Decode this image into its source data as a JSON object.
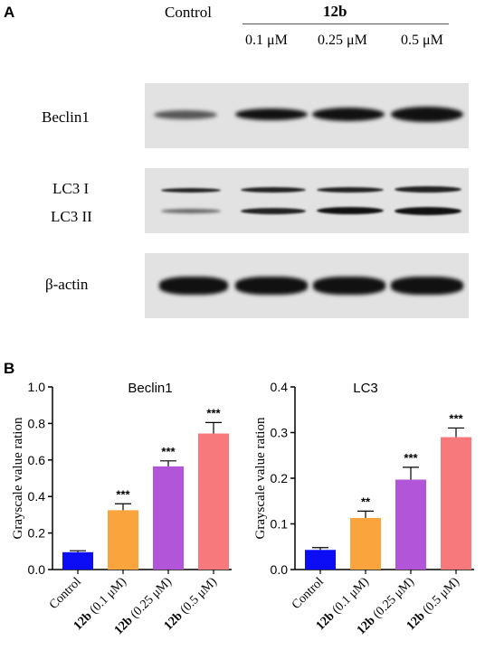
{
  "figure": {
    "panel_a_label": "A",
    "panel_b_label": "B",
    "header": {
      "control_label": "Control",
      "compound_label": "12b",
      "concentrations": [
        "0.1 μM",
        "0.25 μM",
        "0.5 μM"
      ]
    },
    "blots": {
      "beclin1_label": "Beclin1",
      "lc3_i_label": "LC3 I",
      "lc3_ii_label": "LC3 II",
      "actin_label": "β-actin"
    }
  },
  "chart_data": [
    {
      "type": "bar",
      "title": "Beclin1",
      "ylabel": "Grayscale value ration",
      "xlabel": "",
      "ylim": [
        0,
        1.0
      ],
      "yticks": [
        "0.0",
        "0.2",
        "0.4",
        "0.6",
        "0.8",
        "1.0"
      ],
      "categories": [
        {
          "bold": "",
          "rest": "Control"
        },
        {
          "bold": "12b",
          "rest": " (0.1 μM)"
        },
        {
          "bold": "12b",
          "rest": " (0.25 μM)"
        },
        {
          "bold": "12b",
          "rest": " (0.5 μM)"
        }
      ],
      "values": [
        0.095,
        0.325,
        0.565,
        0.745
      ],
      "errors": [
        0.008,
        0.035,
        0.03,
        0.06
      ],
      "significance": [
        "",
        "***",
        "***",
        "***"
      ],
      "colors": [
        "#0c0cf5",
        "#f9a43c",
        "#b255d9",
        "#f8797b"
      ]
    },
    {
      "type": "bar",
      "title": "LC3",
      "ylabel": "Grayscale value ration",
      "xlabel": "",
      "ylim": [
        0,
        0.4
      ],
      "yticks": [
        "0.0",
        "0.1",
        "0.2",
        "0.3",
        "0.4"
      ],
      "categories": [
        {
          "bold": "",
          "rest": "Control"
        },
        {
          "bold": "12b",
          "rest": " (0.1 μM)"
        },
        {
          "bold": "12b",
          "rest": " (0.25 μM)"
        },
        {
          "bold": "12b",
          "rest": " (0.5 μM)"
        }
      ],
      "values": [
        0.043,
        0.113,
        0.197,
        0.29
      ],
      "errors": [
        0.005,
        0.015,
        0.027,
        0.02
      ],
      "significance": [
        "",
        "**",
        "***",
        "***"
      ],
      "colors": [
        "#0c0cf5",
        "#f9a43c",
        "#b255d9",
        "#f8797b"
      ]
    }
  ]
}
